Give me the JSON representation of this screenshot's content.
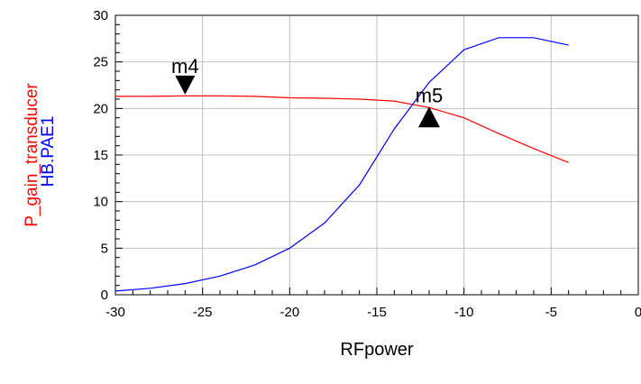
{
  "chart_data": {
    "type": "line",
    "xlabel": "RFpower",
    "ylabels": [
      {
        "text": "P_gain_transducer",
        "color": "#ff0000"
      },
      {
        "text": "HB.PAE1",
        "color": "#0000ff"
      }
    ],
    "xlim": [
      -30,
      0
    ],
    "ylim": [
      0,
      30
    ],
    "xticks": [
      -30,
      -25,
      -20,
      -15,
      -10,
      -5,
      0
    ],
    "yticks": [
      0,
      5,
      10,
      15,
      20,
      25,
      30
    ],
    "grid": true,
    "series": [
      {
        "name": "P_gain_transducer",
        "color": "#ff0000",
        "x": [
          -30,
          -28,
          -26,
          -24,
          -22,
          -20,
          -18,
          -16,
          -14,
          -12,
          -10,
          -8,
          -6,
          -4
        ],
        "y": [
          21.3,
          21.3,
          21.35,
          21.35,
          21.3,
          21.15,
          21.1,
          21.0,
          20.8,
          20.1,
          19.0,
          17.3,
          15.7,
          14.2
        ]
      },
      {
        "name": "HB.PAE1",
        "color": "#0000ff",
        "x": [
          -30,
          -28,
          -26,
          -24,
          -22,
          -20,
          -18,
          -16,
          -14,
          -12,
          -10,
          -8,
          -6,
          -4
        ],
        "y": [
          0.4,
          0.7,
          1.2,
          2.0,
          3.2,
          5.0,
          7.7,
          11.8,
          17.8,
          22.8,
          26.3,
          27.6,
          27.6,
          26.8
        ]
      }
    ],
    "markers": [
      {
        "label": "m4",
        "x": -26,
        "y": 21.3,
        "direction": "down"
      },
      {
        "label": "m5",
        "x": -12,
        "y": 20.1,
        "direction": "up"
      }
    ]
  }
}
